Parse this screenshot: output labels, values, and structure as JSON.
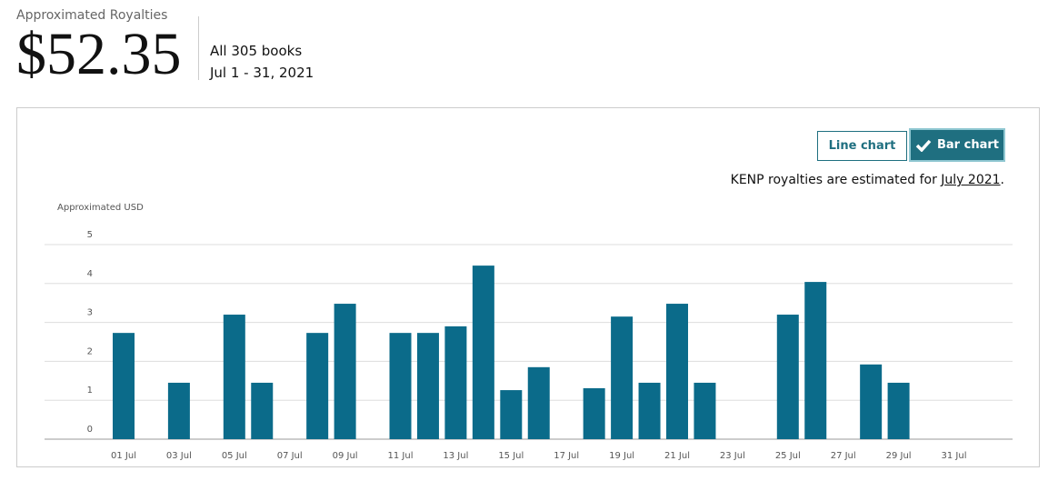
{
  "header": {
    "label": "Approximated Royalties",
    "amount": "$52.35",
    "scope": "All 305 books",
    "date_range": "Jul 1 - 31, 2021"
  },
  "toggle": {
    "line": "Line chart",
    "bar": "Bar chart"
  },
  "note": {
    "text": "KENP royalties are estimated for",
    "link": "July 2021",
    "end": "."
  },
  "chart_data": {
    "type": "bar",
    "y_label": "Approximated USD",
    "categories": [
      "01 Jul",
      null,
      "03 Jul",
      null,
      "05 Jul",
      null,
      "07 Jul",
      null,
      "09 Jul",
      null,
      "11 Jul",
      null,
      "13 Jul",
      null,
      "15 Jul",
      null,
      "17 Jul",
      null,
      "19 Jul",
      null,
      "21 Jul",
      null,
      "23 Jul",
      null,
      "25 Jul",
      null,
      "27 Jul",
      null,
      "29 Jul",
      null,
      "31 Jul"
    ],
    "values": [
      2.73,
      0,
      1.45,
      0,
      3.2,
      1.45,
      0,
      2.73,
      3.48,
      0,
      2.73,
      2.73,
      2.9,
      4.46,
      1.26,
      1.85,
      0,
      1.31,
      3.15,
      1.45,
      3.48,
      1.45,
      0,
      0,
      3.2,
      4.04,
      0,
      1.92,
      1.45,
      0,
      0
    ],
    "color": "#0b6b8a",
    "ylim": [
      0,
      5
    ],
    "yticks": [
      0,
      1,
      2,
      3,
      4,
      5
    ],
    "grid": true
  }
}
